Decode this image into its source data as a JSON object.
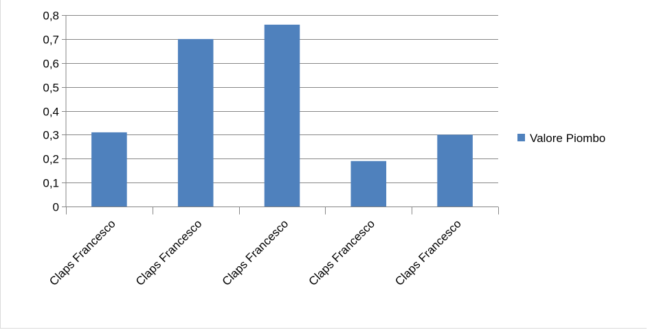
{
  "chart_data": {
    "type": "bar",
    "categories": [
      "Claps Francesco",
      "Claps Francesco",
      "Claps Francesco",
      "Claps Francesco",
      "Claps Francesco"
    ],
    "series": [
      {
        "name": "Valore Piombo",
        "values": [
          0.31,
          0.7,
          0.76,
          0.19,
          0.3
        ],
        "color": "#4F81BD"
      }
    ],
    "title": "",
    "xlabel": "",
    "ylabel": "",
    "ylim": [
      0,
      0.8
    ],
    "yticks": [
      0,
      0.1,
      0.2,
      0.3,
      0.4,
      0.5,
      0.6,
      0.7,
      0.8
    ],
    "ytick_labels": [
      "0",
      "0,1",
      "0,2",
      "0,3",
      "0,4",
      "0,5",
      "0,6",
      "0,7",
      "0,8"
    ],
    "grid": true,
    "legend_position": "right"
  }
}
